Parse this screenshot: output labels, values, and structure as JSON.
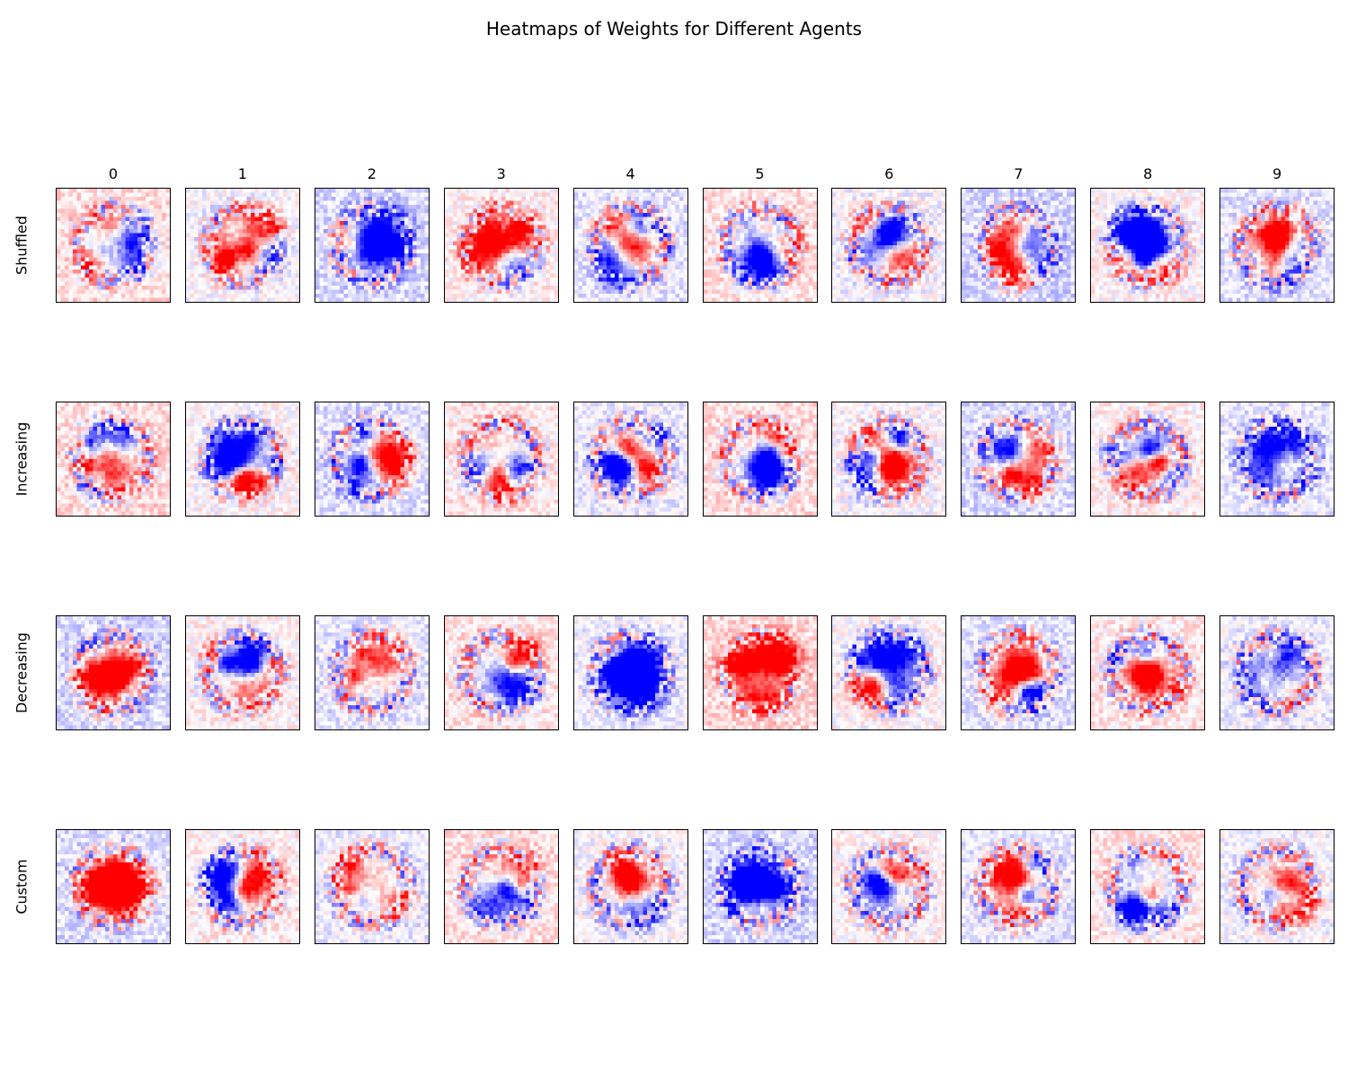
{
  "chart_data": {
    "type": "heatmap",
    "title": "Heatmaps of Weights for Different Agents",
    "columns": [
      "0",
      "1",
      "2",
      "3",
      "4",
      "5",
      "6",
      "7",
      "8",
      "9"
    ],
    "rows": [
      "Shuffled",
      "Increasing",
      "Decreasing",
      "Custom"
    ],
    "grid_size": [
      28,
      28
    ],
    "colormap": [
      "#0000ff",
      "#ffffff",
      "#ff0000"
    ],
    "value_range": [
      -1,
      1
    ],
    "grid": false
  }
}
